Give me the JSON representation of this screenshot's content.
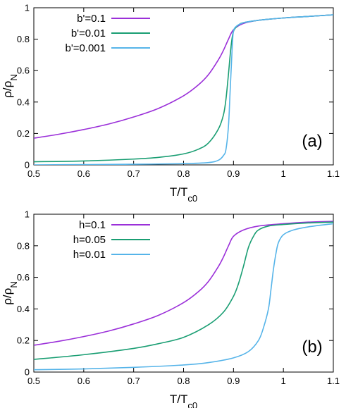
{
  "chart_data": [
    {
      "type": "line",
      "panel_label": "(a)",
      "xlabel": {
        "main": "T/T",
        "sub": "c0"
      },
      "ylabel": {
        "main": "ρ/ρ",
        "sub": "N"
      },
      "xlim": [
        0.5,
        1.1
      ],
      "ylim": [
        0,
        1
      ],
      "xticks": [
        0.5,
        0.6,
        0.7,
        0.8,
        0.9,
        1,
        1.1
      ],
      "xtick_labels": [
        "0.5",
        "0.6",
        "0.7",
        "0.8",
        "0.9",
        "1",
        "1.1"
      ],
      "yticks": [
        0,
        0.2,
        0.4,
        0.6,
        0.8,
        1
      ],
      "ytick_labels": [
        "0",
        "0.2",
        "0.4",
        "0.6",
        "0.8",
        "1"
      ],
      "grid": false,
      "legend_position": "top-left",
      "series": [
        {
          "name": "b'=0.1",
          "color": "#9b30d9",
          "x": [
            0.5,
            0.55,
            0.6,
            0.65,
            0.7,
            0.75,
            0.8,
            0.83,
            0.85,
            0.87,
            0.88,
            0.89,
            0.9,
            0.92,
            0.95,
            1.0,
            1.05,
            1.1
          ],
          "y": [
            0.17,
            0.195,
            0.225,
            0.26,
            0.305,
            0.36,
            0.44,
            0.51,
            0.575,
            0.67,
            0.73,
            0.8,
            0.86,
            0.9,
            0.92,
            0.935,
            0.945,
            0.955
          ]
        },
        {
          "name": "b'=0.01",
          "color": "#1a9e73",
          "x": [
            0.5,
            0.6,
            0.7,
            0.75,
            0.8,
            0.83,
            0.85,
            0.87,
            0.88,
            0.885,
            0.89,
            0.895,
            0.9,
            0.91,
            0.92,
            0.95,
            1.0,
            1.05,
            1.1
          ],
          "y": [
            0.02,
            0.025,
            0.037,
            0.048,
            0.07,
            0.1,
            0.14,
            0.23,
            0.32,
            0.42,
            0.58,
            0.75,
            0.85,
            0.89,
            0.905,
            0.92,
            0.935,
            0.945,
            0.955
          ]
        },
        {
          "name": "b'=0.001",
          "color": "#56b4e9",
          "x": [
            0.5,
            0.6,
            0.7,
            0.8,
            0.85,
            0.87,
            0.88,
            0.885,
            0.89,
            0.893,
            0.896,
            0.898,
            0.9,
            0.905,
            0.92,
            0.95,
            1.0,
            1.05,
            1.1
          ],
          "y": [
            0.0,
            0.002,
            0.004,
            0.008,
            0.015,
            0.03,
            0.06,
            0.1,
            0.25,
            0.45,
            0.65,
            0.78,
            0.85,
            0.88,
            0.905,
            0.92,
            0.935,
            0.945,
            0.955
          ]
        }
      ]
    },
    {
      "type": "line",
      "panel_label": "(b)",
      "xlabel": {
        "main": "T/T",
        "sub": "c0"
      },
      "ylabel": {
        "main": "ρ/ρ",
        "sub": "N"
      },
      "xlim": [
        0.5,
        1.1
      ],
      "ylim": [
        0,
        1
      ],
      "xticks": [
        0.5,
        0.6,
        0.7,
        0.8,
        0.9,
        1,
        1.1
      ],
      "xtick_labels": [
        "0.5",
        "0.6",
        "0.7",
        "0.8",
        "0.9",
        "1",
        "1.1"
      ],
      "yticks": [
        0,
        0.2,
        0.4,
        0.6,
        0.8,
        1
      ],
      "ytick_labels": [
        "0",
        "0.2",
        "0.4",
        "0.6",
        "0.8",
        "1"
      ],
      "grid": false,
      "legend_position": "top-left",
      "series": [
        {
          "name": "h=0.1",
          "color": "#9b30d9",
          "x": [
            0.5,
            0.55,
            0.6,
            0.65,
            0.7,
            0.75,
            0.8,
            0.83,
            0.85,
            0.87,
            0.88,
            0.89,
            0.9,
            0.92,
            0.95,
            1.0,
            1.05,
            1.1
          ],
          "y": [
            0.17,
            0.195,
            0.225,
            0.26,
            0.305,
            0.36,
            0.44,
            0.51,
            0.575,
            0.67,
            0.73,
            0.8,
            0.86,
            0.9,
            0.925,
            0.94,
            0.95,
            0.955
          ]
        },
        {
          "name": "h=0.05",
          "color": "#1a9e73",
          "x": [
            0.5,
            0.6,
            0.7,
            0.75,
            0.8,
            0.85,
            0.88,
            0.9,
            0.91,
            0.92,
            0.93,
            0.94,
            0.95,
            0.97,
            1.0,
            1.05,
            1.1
          ],
          "y": [
            0.08,
            0.11,
            0.15,
            0.18,
            0.22,
            0.3,
            0.38,
            0.48,
            0.56,
            0.67,
            0.79,
            0.86,
            0.9,
            0.925,
            0.935,
            0.945,
            0.95
          ]
        },
        {
          "name": "h=0.01",
          "color": "#56b4e9",
          "x": [
            0.5,
            0.6,
            0.7,
            0.8,
            0.85,
            0.9,
            0.93,
            0.95,
            0.96,
            0.97,
            0.975,
            0.98,
            0.985,
            0.99,
            1.0,
            1.02,
            1.05,
            1.1
          ],
          "y": [
            0.015,
            0.02,
            0.03,
            0.045,
            0.06,
            0.09,
            0.13,
            0.2,
            0.28,
            0.4,
            0.52,
            0.65,
            0.75,
            0.82,
            0.87,
            0.9,
            0.92,
            0.94
          ]
        }
      ]
    }
  ]
}
